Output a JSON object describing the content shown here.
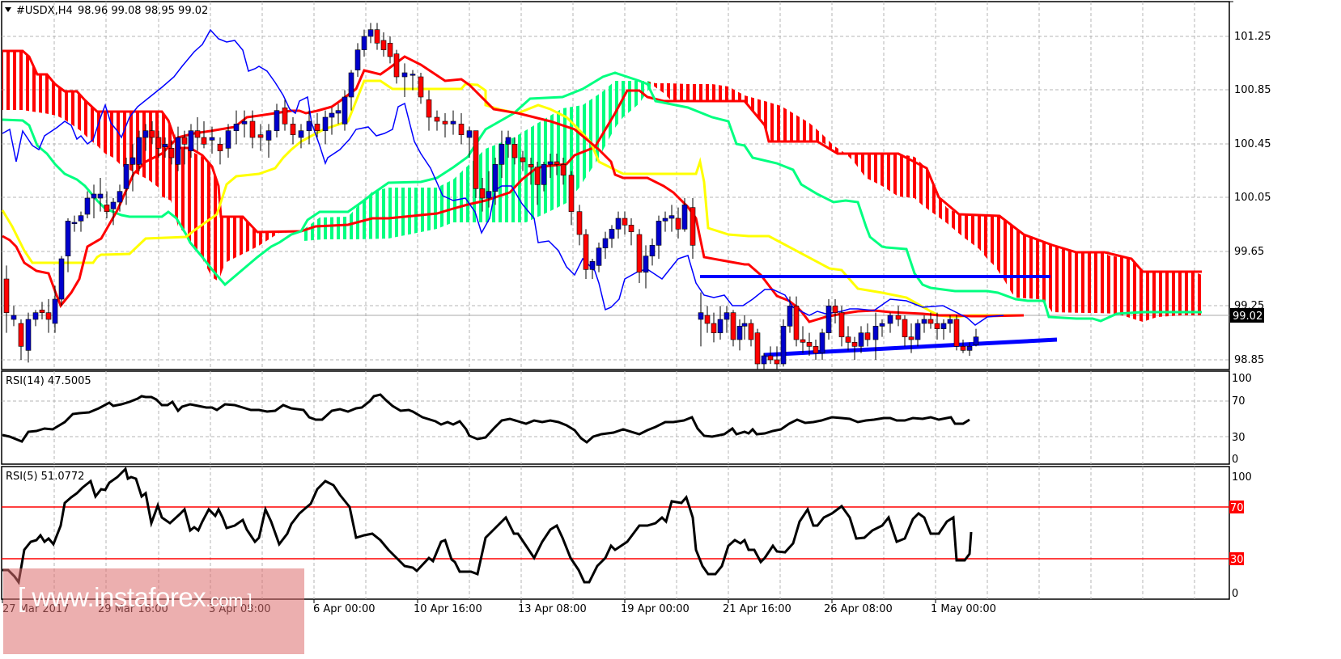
{
  "header": {
    "symbol_label": "#USDX,H4",
    "ohlc": "98.96 99.08 98.95 99.02",
    "menu_icon": "triangle-down-icon"
  },
  "watermark": {
    "text_main": "[ www.instaforex",
    "text_suffix": ".com ]"
  },
  "price_axis": {
    "ticks": [
      "101.25",
      "100.85",
      "100.45",
      "100.05",
      "99.65",
      "99.25",
      "98.85"
    ],
    "current_price_label": "99.02"
  },
  "rsi14": {
    "label": "RSI(14) 47.5005",
    "ticks": [
      "100",
      "70",
      "30",
      "0"
    ]
  },
  "rsi5": {
    "label": "RSI(5) 51.0772",
    "ticks": [
      "100",
      "70",
      "30",
      "0"
    ],
    "level_high": "70",
    "level_low": "30"
  },
  "time_axis": {
    "labels": [
      "27 Mar 2017",
      "29 Mar 16:00",
      "3 Apr 08:00",
      "6 Apr 00:00",
      "10 Apr 16:00",
      "13 Apr 08:00",
      "19 Apr 00:00",
      "21 Apr 16:00",
      "26 Apr 08:00",
      "1 May 00:00"
    ]
  },
  "colors": {
    "bull_candle": "#0000cc",
    "bear_candle": "#ff0000",
    "tenkan": "#ff0000",
    "kijun": "#ffff00",
    "chikou": "#0000ff",
    "senkou_a": "#00ff80",
    "senkou_b": "#ff0000",
    "trendline": "#0000ff",
    "rsi_line": "#000000",
    "rsi_level": "#ff0000"
  },
  "chart_data": [
    {
      "type": "candlestick",
      "title": "#USDX,H4",
      "indicators": [
        "Ichimoku Kinko Hyo (Tenkan red, Kijun yellow, Chikou blue, Kumo red/green)"
      ],
      "last_ohlc": {
        "open": 98.96,
        "high": 99.08,
        "low": 98.95,
        "close": 99.02
      },
      "ylim": [
        98.75,
        101.45
      ],
      "y_ticks": [
        101.25,
        100.85,
        100.45,
        100.05,
        99.65,
        99.25,
        98.85
      ],
      "x_labels": [
        "27 Mar 2017",
        "29 Mar 16:00",
        "3 Apr 08:00",
        "6 Apr 00:00",
        "10 Apr 16:00",
        "13 Apr 08:00",
        "19 Apr 00:00",
        "21 Apr 16:00",
        "26 Apr 08:00",
        "1 May 00:00"
      ],
      "approx_close_path": [
        {
          "x": "27 Mar 2017",
          "close": 99.15
        },
        {
          "x": "29 Mar 16:00",
          "close": 100.45
        },
        {
          "x": "3 Apr 08:00",
          "close": 100.55
        },
        {
          "x": "6 Apr 00:00",
          "close": 100.6
        },
        {
          "x": "7 Apr",
          "close": 101.3
        },
        {
          "x": "10 Apr 16:00",
          "close": 100.75
        },
        {
          "x": "13 Apr 08:00",
          "close": 100.3
        },
        {
          "x": "19 Apr 00:00",
          "close": 99.55
        },
        {
          "x": "21 Apr 00:00",
          "close": 99.95
        },
        {
          "x": "21 Apr 16:00",
          "close": 99.05
        },
        {
          "x": "24 Apr",
          "close": 98.8
        },
        {
          "x": "26 Apr 08:00",
          "close": 99.1
        },
        {
          "x": "1 May 00:00",
          "close": 99.1
        },
        {
          "x": "3 May",
          "close": 99.02
        }
      ],
      "annotations": [
        {
          "type": "horizontal_resistance",
          "price": 99.34,
          "color": "#0000ff"
        },
        {
          "type": "rising_support",
          "from_price": 98.76,
          "to_price": 98.87,
          "color": "#0000ff"
        }
      ]
    },
    {
      "type": "line",
      "title": "RSI(14)",
      "last_value": 47.5005,
      "ylim": [
        0,
        100
      ],
      "y_ticks": [
        100,
        70,
        30,
        0
      ],
      "approx_values": [
        30,
        24,
        38,
        40,
        58,
        62,
        72,
        66,
        58,
        62,
        56,
        60,
        52,
        62,
        74,
        60,
        44,
        40,
        28,
        46,
        36,
        44,
        30,
        38,
        44,
        48,
        52,
        38,
        46,
        40,
        50,
        54,
        46,
        48,
        54,
        51,
        47.5
      ]
    },
    {
      "type": "line",
      "title": "RSI(5)",
      "last_value": 51.0772,
      "ylim": [
        0,
        100
      ],
      "y_ticks": [
        100,
        70,
        30,
        0
      ],
      "levels": [
        70,
        30
      ],
      "approx_values": [
        22,
        12,
        40,
        48,
        82,
        97,
        72,
        96,
        72,
        46,
        60,
        48,
        68,
        44,
        78,
        44,
        72,
        98,
        76,
        46,
        24,
        14,
        8,
        40,
        64,
        30,
        56,
        26,
        6,
        44,
        70,
        34,
        72,
        70,
        12,
        14,
        26,
        20,
        36,
        70,
        44,
        72,
        40,
        64,
        56,
        64,
        28,
        51
      ]
    }
  ]
}
